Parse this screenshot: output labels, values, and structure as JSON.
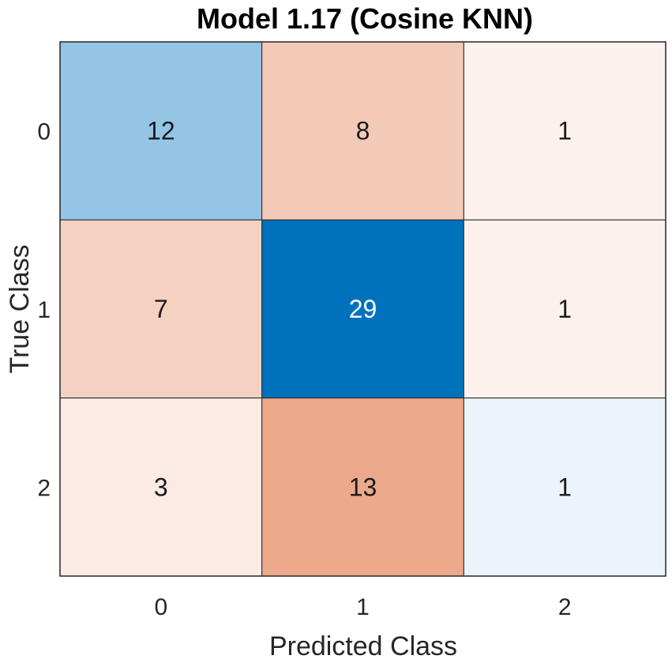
{
  "chart_data": {
    "type": "heatmap",
    "title": "Model 1.17 (Cosine KNN)",
    "xlabel": "Predicted Class",
    "ylabel": "True Class",
    "x_categories": [
      "0",
      "1",
      "2"
    ],
    "y_categories": [
      "0",
      "1",
      "2"
    ],
    "matrix": [
      [
        12,
        8,
        1
      ],
      [
        7,
        29,
        1
      ],
      [
        3,
        13,
        1
      ]
    ],
    "colors": {
      "diagonal_max": "#0072BD",
      "offdiagonal_max": "#D95319"
    }
  }
}
